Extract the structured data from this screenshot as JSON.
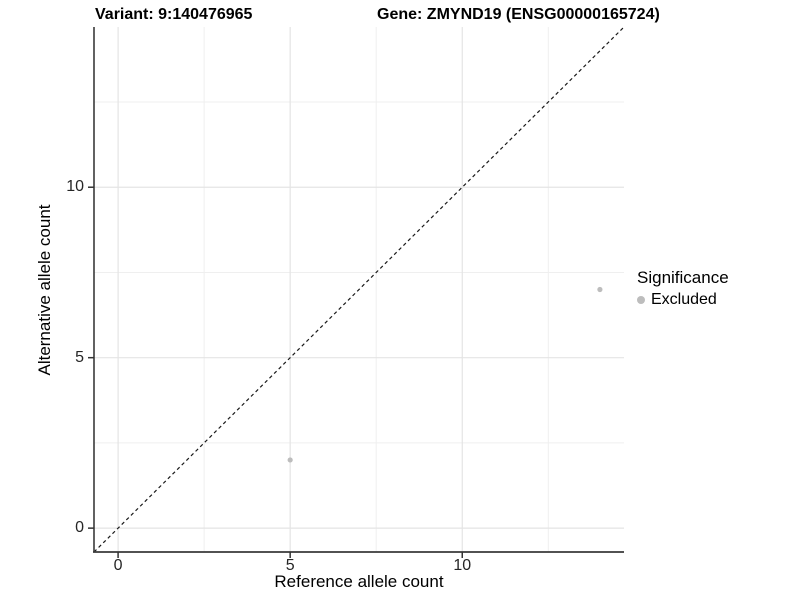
{
  "chart_data": {
    "type": "scatter",
    "title_left": "Variant: 9:140476965",
    "title_right": "Gene: ZMYND19 (ENSG00000165724)",
    "xlabel": "Reference allele count",
    "ylabel": "Alternative allele count",
    "xlim": [
      -0.7,
      14.7
    ],
    "ylim": [
      -0.7,
      14.7
    ],
    "x_major_ticks": [
      0,
      5,
      10
    ],
    "y_major_ticks": [
      0,
      5,
      10
    ],
    "x_minor_gridlines": [
      2.5,
      7.5,
      12.5
    ],
    "y_minor_gridlines": [
      2.5,
      7.5,
      12.5
    ],
    "grid": true,
    "identity_line": {
      "style": "dashed",
      "slope": 1,
      "intercept": 0,
      "color": "#1a1a1a"
    },
    "series": [
      {
        "name": "Excluded",
        "color": "#bdbdbd",
        "points": [
          {
            "x": 5,
            "y": 2
          },
          {
            "x": 14,
            "y": 7
          }
        ]
      }
    ],
    "legend": {
      "title": "Significance",
      "position": "right",
      "entries": [
        {
          "label": "Excluded",
          "color": "#bdbdbd"
        }
      ]
    },
    "colors": {
      "grid_major": "#e4e4e4",
      "grid_minor": "#efefef",
      "axis_line": "#3a3a3a",
      "tick_mark": "#333333",
      "point": "#bdbdbd"
    }
  }
}
